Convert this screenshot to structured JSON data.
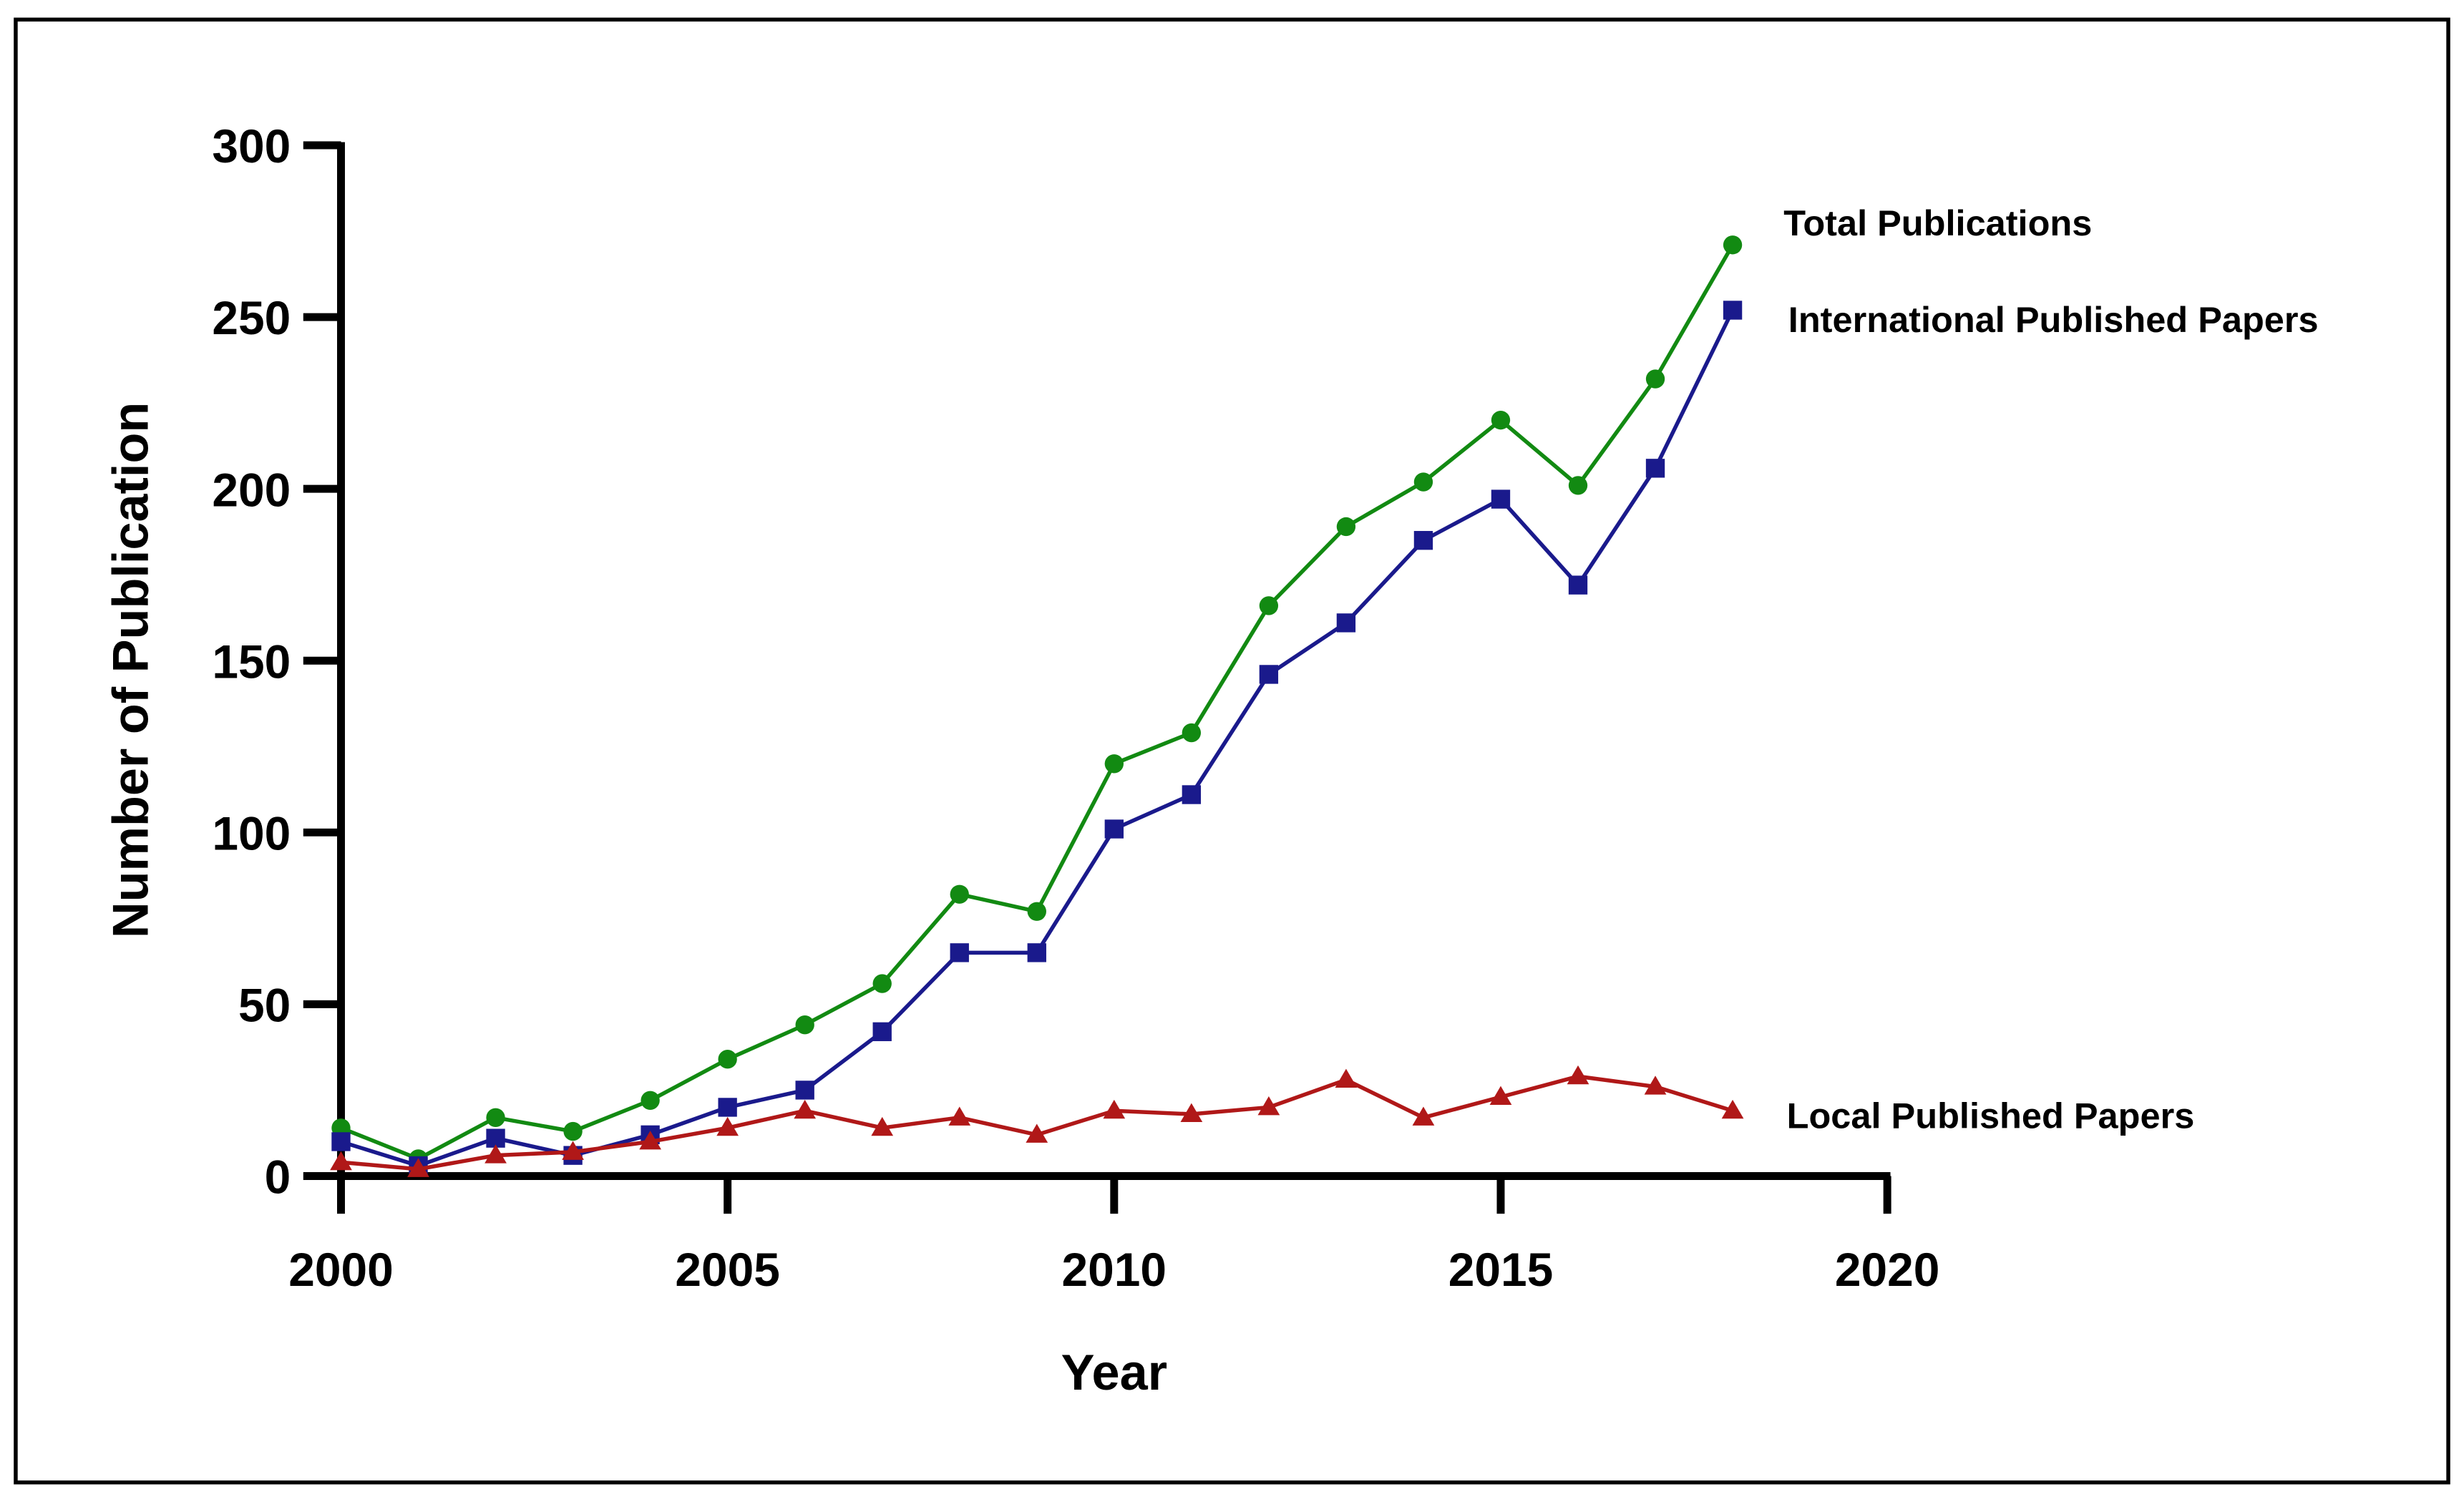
{
  "chart_data": {
    "type": "line",
    "title": "",
    "xlabel": "Year",
    "ylabel": "Number of Publication",
    "xlim": [
      2000,
      2020
    ],
    "ylim": [
      0,
      300
    ],
    "xticks": [
      2000,
      2005,
      2010,
      2015,
      2020
    ],
    "yticks": [
      0,
      50,
      100,
      150,
      200,
      250,
      300
    ],
    "grid": false,
    "legend": "direct labels at right end of each series",
    "x": [
      2000,
      2001,
      2002,
      2003,
      2004,
      2005,
      2006,
      2007,
      2008,
      2009,
      2010,
      2011,
      2012,
      2013,
      2014,
      2015,
      2016,
      2017,
      2018
    ],
    "series": [
      {
        "name": "Total Publications",
        "color": "#128a12",
        "marker": "circle",
        "values": [
          14,
          5,
          17,
          13,
          22,
          34,
          44,
          56,
          82,
          77,
          120,
          129,
          166,
          189,
          202,
          220,
          201,
          232,
          271
        ]
      },
      {
        "name": "International Published Papers",
        "color": "#1a1a8c",
        "marker": "square",
        "values": [
          10,
          3,
          11,
          6,
          12,
          20,
          25,
          42,
          65,
          65,
          101,
          111,
          146,
          161,
          185,
          197,
          172,
          206,
          252
        ]
      },
      {
        "name": "Local Published Papers",
        "color": "#b01818",
        "marker": "triangle",
        "values": [
          4,
          2,
          6,
          7,
          10,
          14,
          19,
          14,
          17,
          12,
          19,
          18,
          20,
          28,
          17,
          23,
          29,
          26,
          19
        ]
      }
    ]
  }
}
